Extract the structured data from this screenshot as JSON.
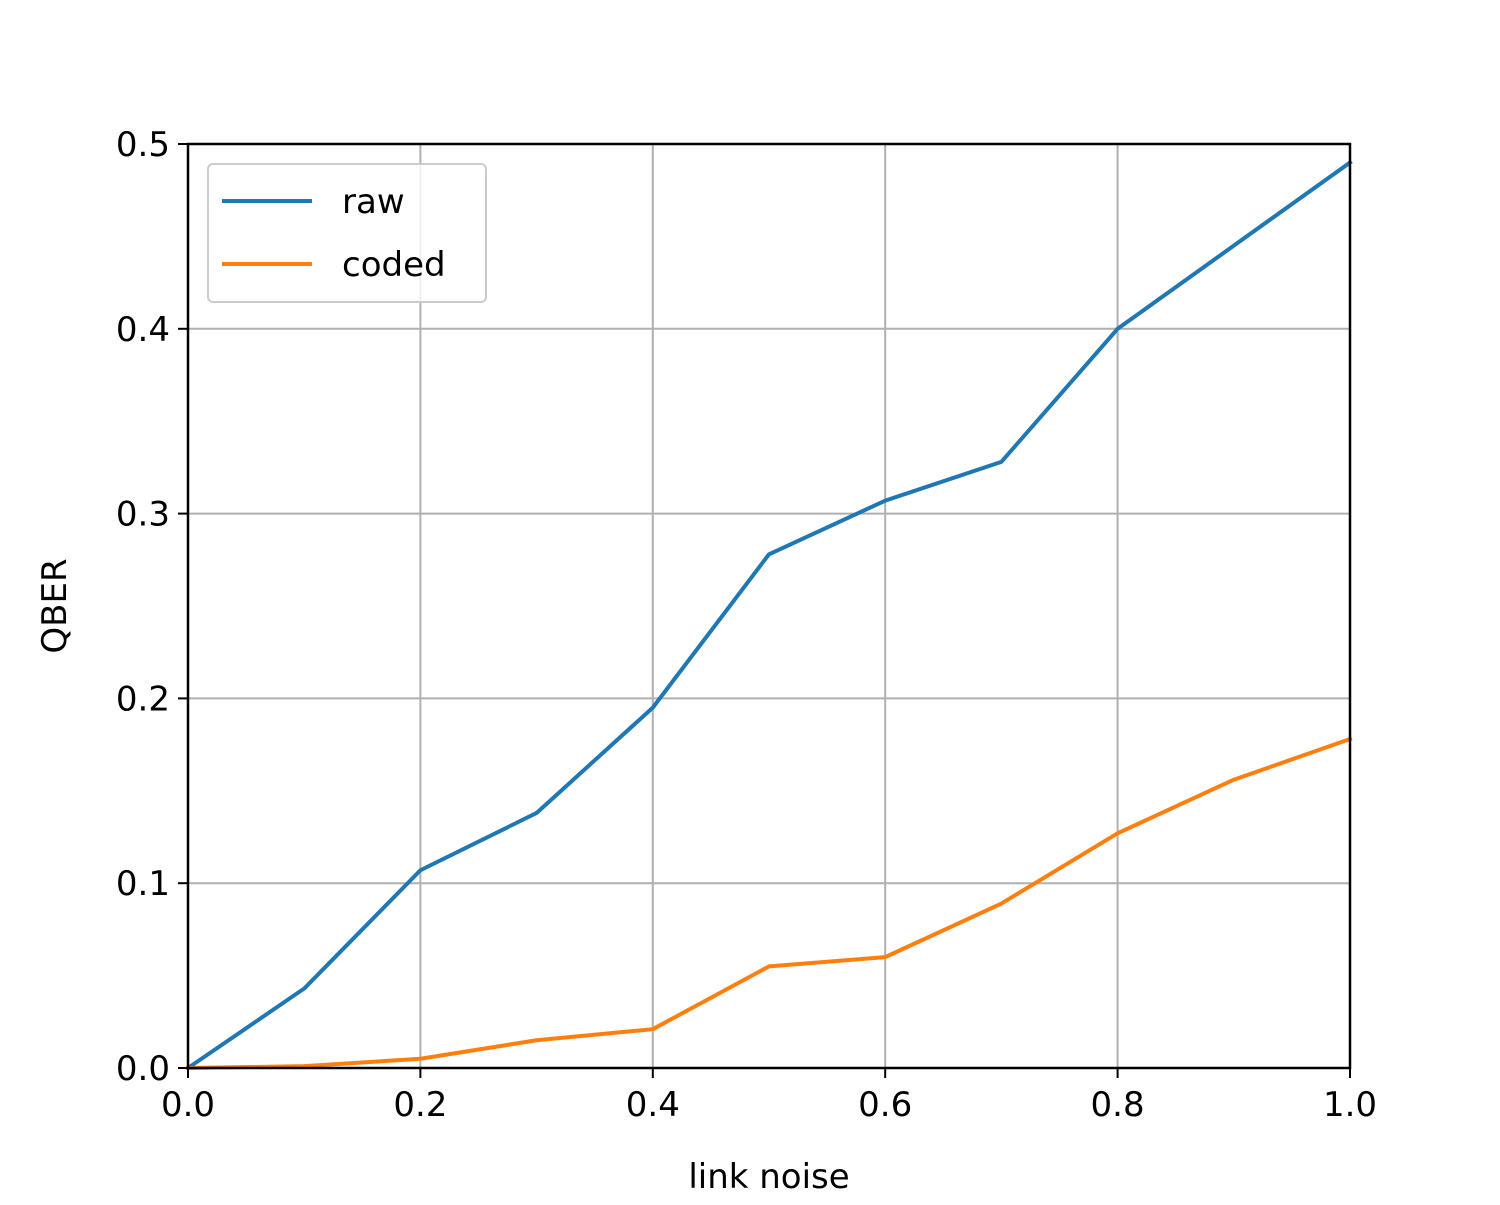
{
  "chart_data": {
    "type": "line",
    "xlabel": "link noise",
    "ylabel": "QBER",
    "xlim": [
      0.0,
      1.0
    ],
    "ylim": [
      0.0,
      0.5
    ],
    "x": [
      0.0,
      0.1,
      0.2,
      0.3,
      0.4,
      0.5,
      0.6,
      0.7,
      0.8,
      0.9,
      1.0
    ],
    "xticks": [
      "0.0",
      "0.2",
      "0.4",
      "0.6",
      "0.8",
      "1.0"
    ],
    "yticks": [
      "0.0",
      "0.1",
      "0.2",
      "0.3",
      "0.4",
      "0.5"
    ],
    "grid": true,
    "legend_position": "upper-left",
    "series": [
      {
        "name": "raw",
        "color": "#1f77b4",
        "values": [
          0.0,
          0.043,
          0.107,
          0.138,
          0.195,
          0.278,
          0.307,
          0.328,
          0.4,
          0.445,
          0.49
        ]
      },
      {
        "name": "coded",
        "color": "#ff7f0e",
        "values": [
          0.0,
          0.001,
          0.005,
          0.015,
          0.021,
          0.055,
          0.06,
          0.089,
          0.127,
          0.156,
          0.178
        ]
      }
    ]
  }
}
